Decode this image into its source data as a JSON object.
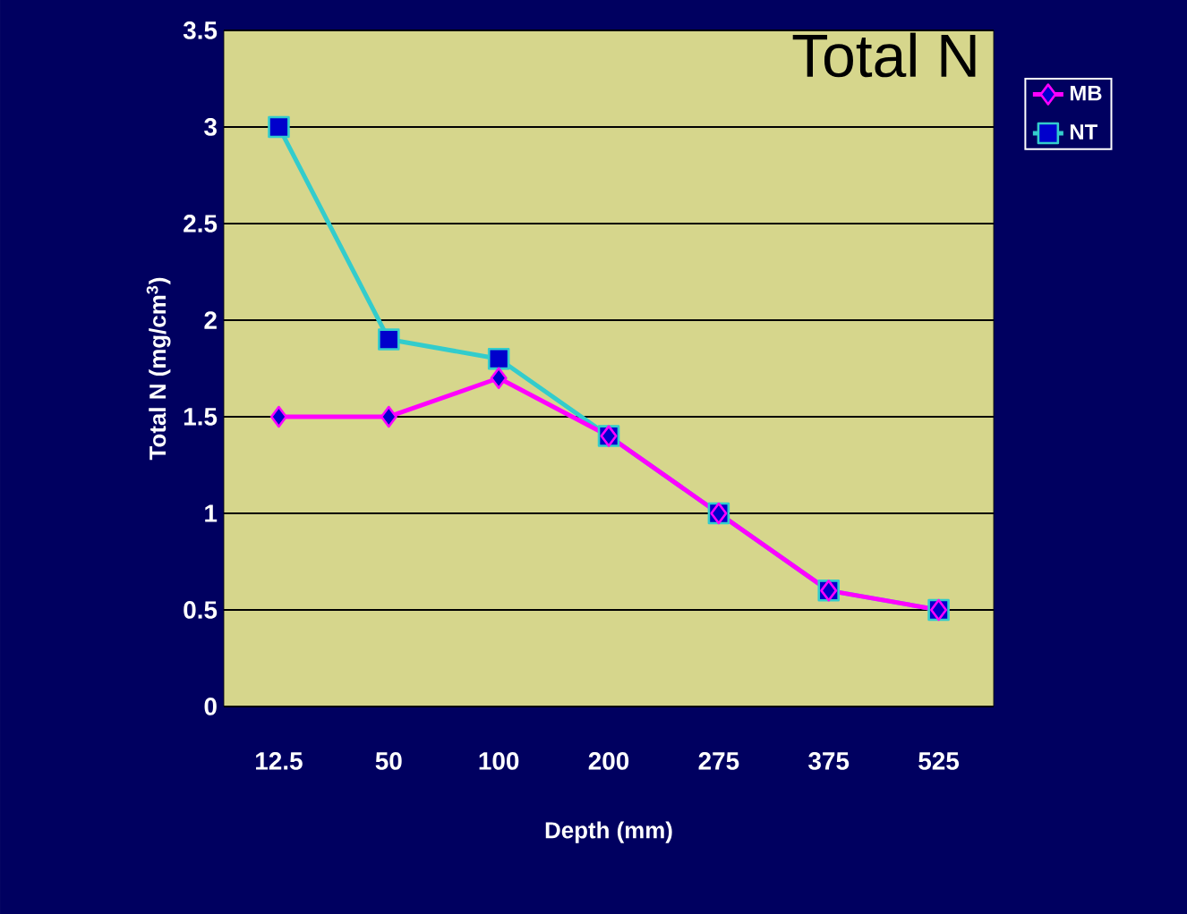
{
  "chart_data": {
    "type": "line",
    "title": "Total N",
    "xlabel": "Depth (mm)",
    "ylabel": "Total N (mg/cm$^{3}$)",
    "categories": [
      "12.5",
      "50",
      "100",
      "200",
      "275",
      "375",
      "525"
    ],
    "series": [
      {
        "name": "MB",
        "color": "#ff00ff",
        "marker": "diamond",
        "values": [
          1.5,
          1.5,
          1.7,
          1.4,
          1.0,
          0.6,
          0.5
        ]
      },
      {
        "name": "NT",
        "color": "#33cccc",
        "marker": "square",
        "values": [
          3.0,
          1.9,
          1.8,
          1.4,
          1.0,
          0.6,
          0.5
        ]
      }
    ],
    "ylim": [
      0,
      3.5
    ],
    "yticks": [
      0,
      0.5,
      1,
      1.5,
      2,
      2.5,
      3,
      3.5
    ],
    "grid": "y",
    "legend": "right"
  }
}
